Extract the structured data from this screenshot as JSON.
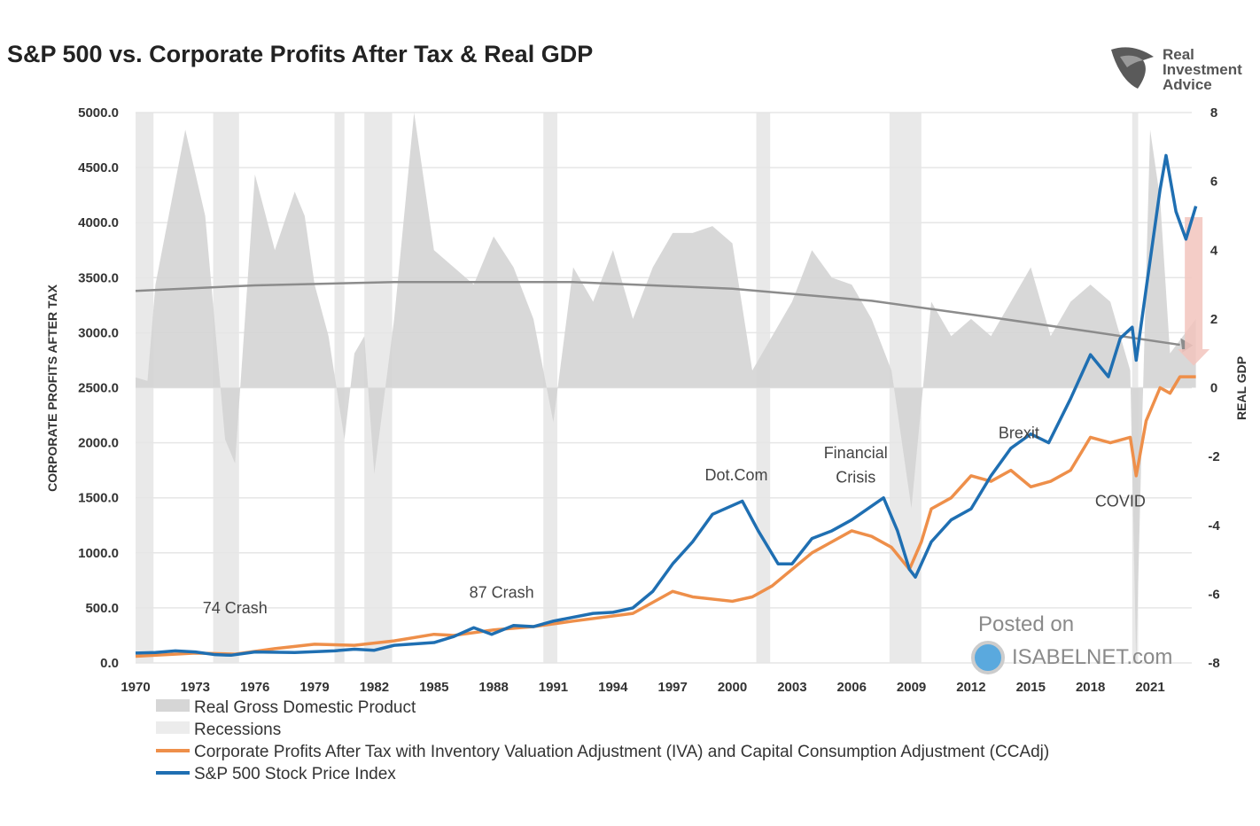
{
  "title": "S&P 500 vs. Corporate Profits After Tax & Real GDP",
  "logo": {
    "lines": [
      "Real",
      "Investment",
      "Advice"
    ]
  },
  "watermark": {
    "line1": "Posted on",
    "line2": "ISABELNET.com"
  },
  "colors": {
    "sp500": "#1f6fb2",
    "profits": "#ee8f4a",
    "gdp": "#d4d4d4",
    "recession": "#e9e9e9",
    "trend": "#8c8c8c",
    "down_arrow": "#f2c4bd"
  },
  "chart_data": {
    "type": "line",
    "title": "S&P 500 vs. Corporate Profits After Tax & Real GDP",
    "ylabel": "CORPORATE PROFITS AFTER TAX",
    "y2label": "REAL GDP",
    "xlim": [
      1970,
      2023.3
    ],
    "ylim": [
      0,
      5000
    ],
    "y2lim": [
      -8,
      8
    ],
    "x_ticks": [
      "1970",
      "1973",
      "1976",
      "1979",
      "1982",
      "1985",
      "1988",
      "1991",
      "1994",
      "1997",
      "2000",
      "2003",
      "2006",
      "2009",
      "2012",
      "2015",
      "2018",
      "2021"
    ],
    "y_ticks": [
      "0.0",
      "500.0",
      "1000.0",
      "1500.0",
      "2000.0",
      "2500.0",
      "3000.0",
      "3500.0",
      "4000.0",
      "4500.0",
      "5000.0"
    ],
    "y2_ticks": [
      "8",
      "6",
      "4",
      "2",
      "0",
      "-2",
      "-4",
      "-6",
      "-8"
    ],
    "grid": true,
    "legend_placement": "bottom-left",
    "legend": [
      {
        "label": "Real Gross Domestic Product",
        "type": "area-gdp"
      },
      {
        "label": "Recessions",
        "type": "area-recession"
      },
      {
        "label": "Corporate Profits After Tax with Inventory Valuation Adjustment (IVA) and Capital Consumption Adjustment (CCAdj)",
        "type": "line-profits"
      },
      {
        "label": "S&P 500 Stock Price Index",
        "type": "line-sp500"
      }
    ],
    "recessions": [
      [
        1970,
        1970.9
      ],
      [
        1973.9,
        1975.2
      ],
      [
        1980,
        1980.5
      ],
      [
        1981.5,
        1982.9
      ],
      [
        1990.5,
        1991.2
      ],
      [
        2001.2,
        2001.9
      ],
      [
        2007.9,
        2009.5
      ],
      [
        2020.1,
        2020.4
      ]
    ],
    "series": [
      {
        "name": "S&P 500 Stock Price Index",
        "axis": "left",
        "x": [
          1970,
          1971,
          1972,
          1973,
          1974,
          1974.8,
          1976,
          1978,
          1980,
          1981,
          1982,
          1983,
          1985,
          1986,
          1987,
          1987.9,
          1989,
          1990,
          1991,
          1993,
          1994,
          1995,
          1996,
          1997,
          1998,
          1999,
          2000.5,
          2001.3,
          2002.3,
          2003,
          2004,
          2005,
          2006,
          2007.6,
          2008.3,
          2008.9,
          2009.2,
          2010,
          2011,
          2012,
          2013,
          2014,
          2015,
          2015.9,
          2017,
          2018,
          2018.9,
          2019.5,
          2020.1,
          2020.3,
          2020.8,
          2021.5,
          2021.8,
          2022.3,
          2022.8,
          2023.3
        ],
        "values": [
          90,
          95,
          110,
          100,
          75,
          70,
          100,
          95,
          110,
          125,
          115,
          160,
          185,
          240,
          320,
          260,
          340,
          330,
          380,
          450,
          460,
          500,
          650,
          900,
          1100,
          1350,
          1470,
          1200,
          900,
          900,
          1130,
          1200,
          1300,
          1500,
          1200,
          850,
          780,
          1100,
          1300,
          1400,
          1700,
          1950,
          2080,
          2000,
          2400,
          2800,
          2600,
          2950,
          3050,
          2750,
          3400,
          4300,
          4610,
          4100,
          3850,
          4150
        ]
      },
      {
        "name": "Corporate Profits After Tax (IVA, CCAdj)",
        "axis": "left",
        "x": [
          1970,
          1973,
          1975,
          1977,
          1979,
          1981,
          1983,
          1985,
          1986,
          1988,
          1990,
          1992,
          1995,
          1997,
          1998,
          2000,
          2001,
          2002,
          2003,
          2004,
          2005,
          2006,
          2007,
          2008,
          2008.9,
          2009.5,
          2010,
          2011,
          2012,
          2013,
          2014,
          2015,
          2016,
          2017,
          2018,
          2019,
          2020,
          2020.3,
          2020.8,
          2021.5,
          2022,
          2022.5,
          2023.3
        ],
        "values": [
          60,
          90,
          80,
          130,
          170,
          160,
          200,
          260,
          250,
          300,
          330,
          380,
          450,
          650,
          600,
          560,
          600,
          700,
          850,
          1000,
          1100,
          1200,
          1150,
          1050,
          850,
          1100,
          1400,
          1500,
          1700,
          1650,
          1750,
          1600,
          1650,
          1750,
          2050,
          2000,
          2050,
          1700,
          2200,
          2500,
          2450,
          2600,
          2600
        ]
      },
      {
        "name": "Real Gross Domestic Product",
        "axis": "right",
        "x": [
          1970,
          1970.6,
          1971,
          1972.5,
          1973.5,
          1974.5,
          1975,
          1976,
          1977,
          1978,
          1978.5,
          1979,
          1979.7,
          1980.5,
          1981,
          1981.5,
          1982,
          1983,
          1984,
          1985,
          1986,
          1987,
          1988,
          1989,
          1990,
          1991,
          1992,
          1993,
          1994,
          1995,
          1996,
          1997,
          1998,
          1999,
          2000,
          2001,
          2002,
          2003,
          2004,
          2005,
          2006,
          2007,
          2008,
          2009,
          2010,
          2011,
          2012,
          2013,
          2014,
          2015,
          2016,
          2017,
          2018,
          2019,
          2020,
          2020.3,
          2020.6,
          2021,
          2021.5,
          2022,
          2023.3
        ],
        "values": [
          0.3,
          0.2,
          3,
          7.5,
          5,
          -1.5,
          -2.2,
          6.2,
          4,
          5.7,
          5,
          3,
          1.5,
          -1.5,
          1,
          1.5,
          -2.5,
          2,
          8,
          4,
          3.5,
          3,
          4.4,
          3.5,
          2,
          -1,
          3.5,
          2.5,
          4,
          2,
          3.5,
          4.5,
          4.5,
          4.7,
          4.2,
          0.5,
          1.5,
          2.5,
          4,
          3.2,
          3,
          2,
          0.5,
          -3.5,
          2.5,
          1.5,
          2,
          1.5,
          2.5,
          3.5,
          1.5,
          2.5,
          3,
          2.5,
          0.5,
          -9,
          -1,
          7.5,
          5.5,
          1,
          2
        ]
      }
    ],
    "annotations": [
      {
        "text": "74 Crash",
        "x": 1975,
        "y": 450
      },
      {
        "text": "87 Crash",
        "x": 1988.4,
        "y": 590
      },
      {
        "text": "Dot.Com",
        "x": 2000.2,
        "y": 1660
      },
      {
        "text": "Financial",
        "x": 2006.2,
        "y": 1860
      },
      {
        "text": "Crisis",
        "x": 2006.2,
        "y": 1640
      },
      {
        "text": "Brexit",
        "x": 2014.4,
        "y": 2040
      },
      {
        "text": "COVID",
        "x": 2019.5,
        "y": 1420
      }
    ]
  }
}
